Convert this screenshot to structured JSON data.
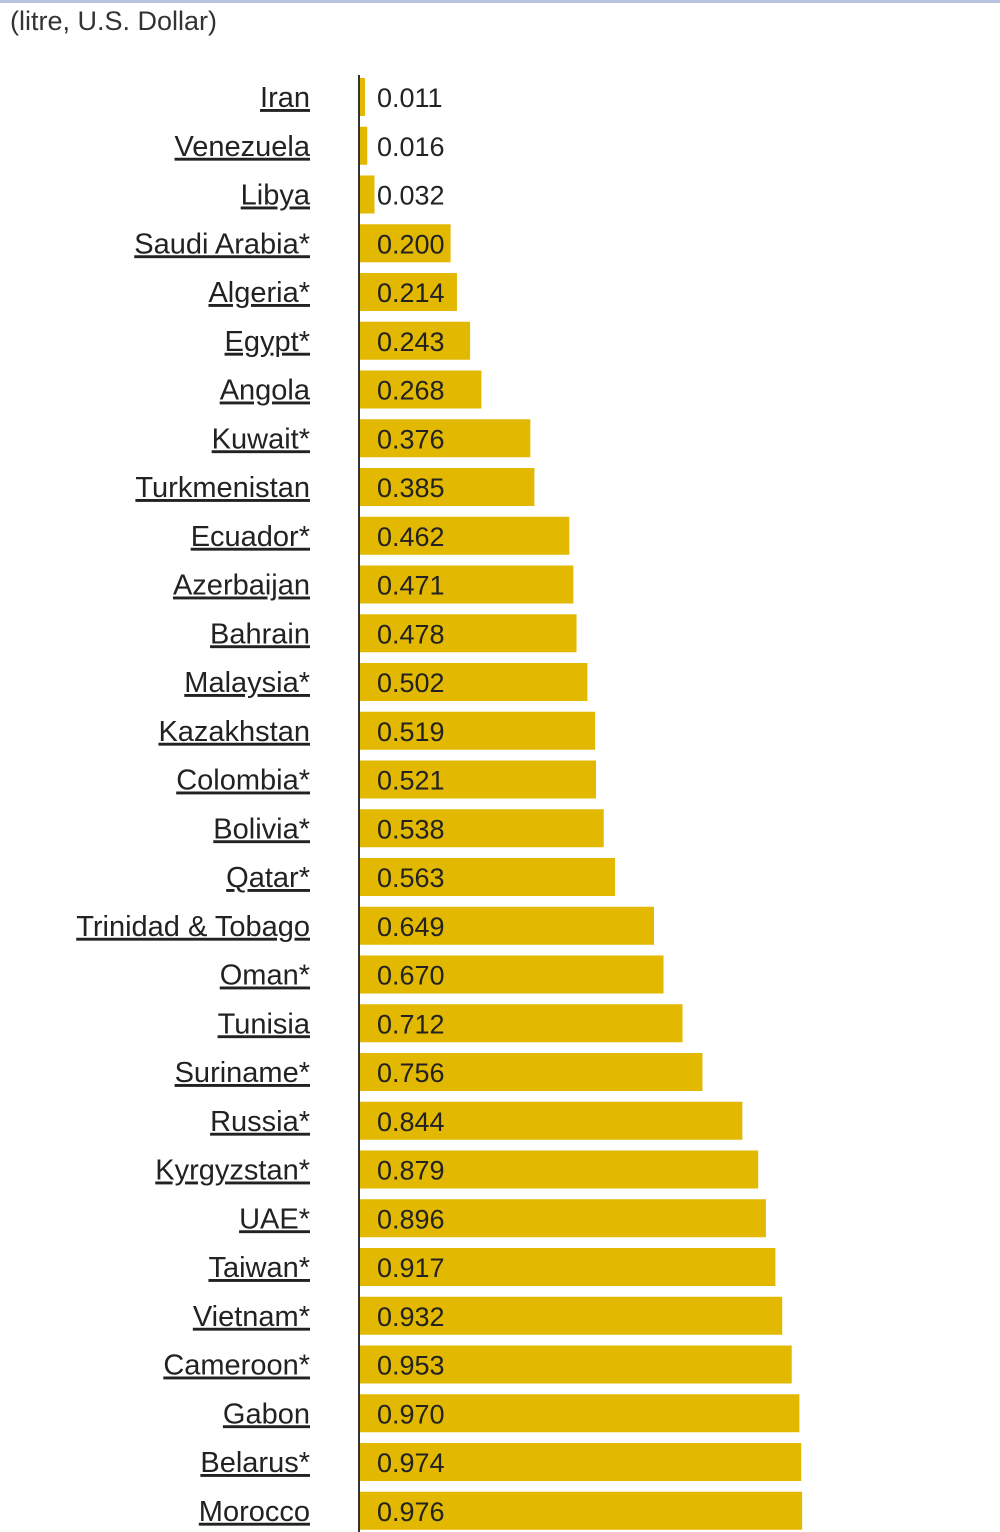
{
  "unit_caption": "(litre, U.S. Dollar)",
  "chart_data": {
    "type": "bar",
    "orientation": "horizontal",
    "title": "",
    "subtitle": "(litre, U.S. Dollar)",
    "xlabel": "",
    "ylabel": "",
    "xlim": [
      0,
      1.0
    ],
    "grid": false,
    "bar_color": "#e2b800",
    "categories": [
      "Iran",
      "Venezuela",
      "Libya",
      "Saudi Arabia*",
      "Algeria*",
      "Egypt*",
      "Angola",
      "Kuwait*",
      "Turkmenistan",
      "Ecuador*",
      "Azerbaijan",
      "Bahrain",
      "Malaysia*",
      "Kazakhstan",
      "Colombia*",
      "Bolivia*",
      "Qatar*",
      "Trinidad & Tobago",
      "Oman*",
      "Tunisia",
      "Suriname*",
      "Russia*",
      "Kyrgyzstan*",
      "UAE*",
      "Taiwan*",
      "Vietnam*",
      "Cameroon*",
      "Gabon",
      "Belarus*",
      "Morocco"
    ],
    "values": [
      0.011,
      0.016,
      0.032,
      0.2,
      0.214,
      0.243,
      0.268,
      0.376,
      0.385,
      0.462,
      0.471,
      0.478,
      0.502,
      0.519,
      0.521,
      0.538,
      0.563,
      0.649,
      0.67,
      0.712,
      0.756,
      0.844,
      0.879,
      0.896,
      0.917,
      0.932,
      0.953,
      0.97,
      0.974,
      0.976
    ],
    "value_labels": [
      "0.011",
      "0.016",
      "0.032",
      "0.200",
      "0.214",
      "0.243",
      "0.268",
      "0.376",
      "0.385",
      "0.462",
      "0.471",
      "0.478",
      "0.502",
      "0.519",
      "0.521",
      "0.538",
      "0.563",
      "0.649",
      "0.670",
      "0.712",
      "0.756",
      "0.844",
      "0.879",
      "0.896",
      "0.917",
      "0.932",
      "0.953",
      "0.970",
      "0.974",
      "0.976"
    ]
  }
}
